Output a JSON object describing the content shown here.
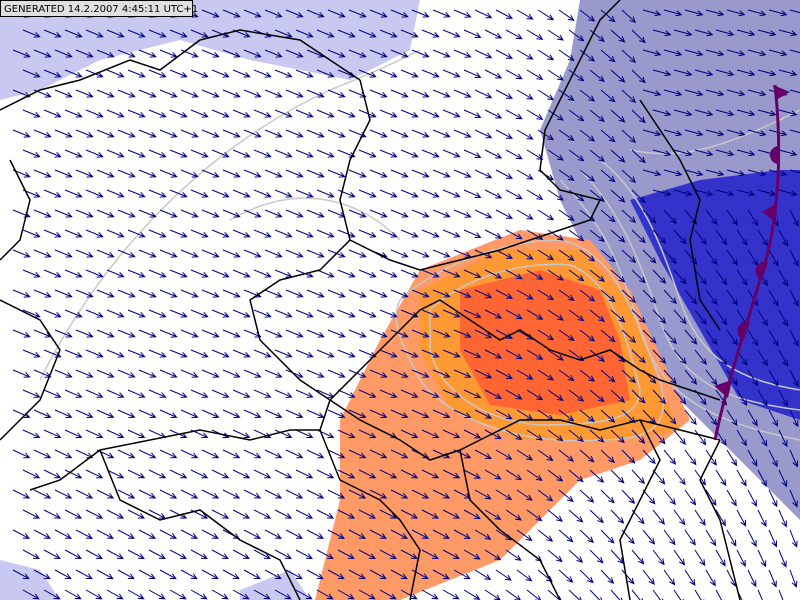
{
  "map": {
    "stamp": "GENERATED 14.2.2007 4:45:11 UTC+1"
  }
}
